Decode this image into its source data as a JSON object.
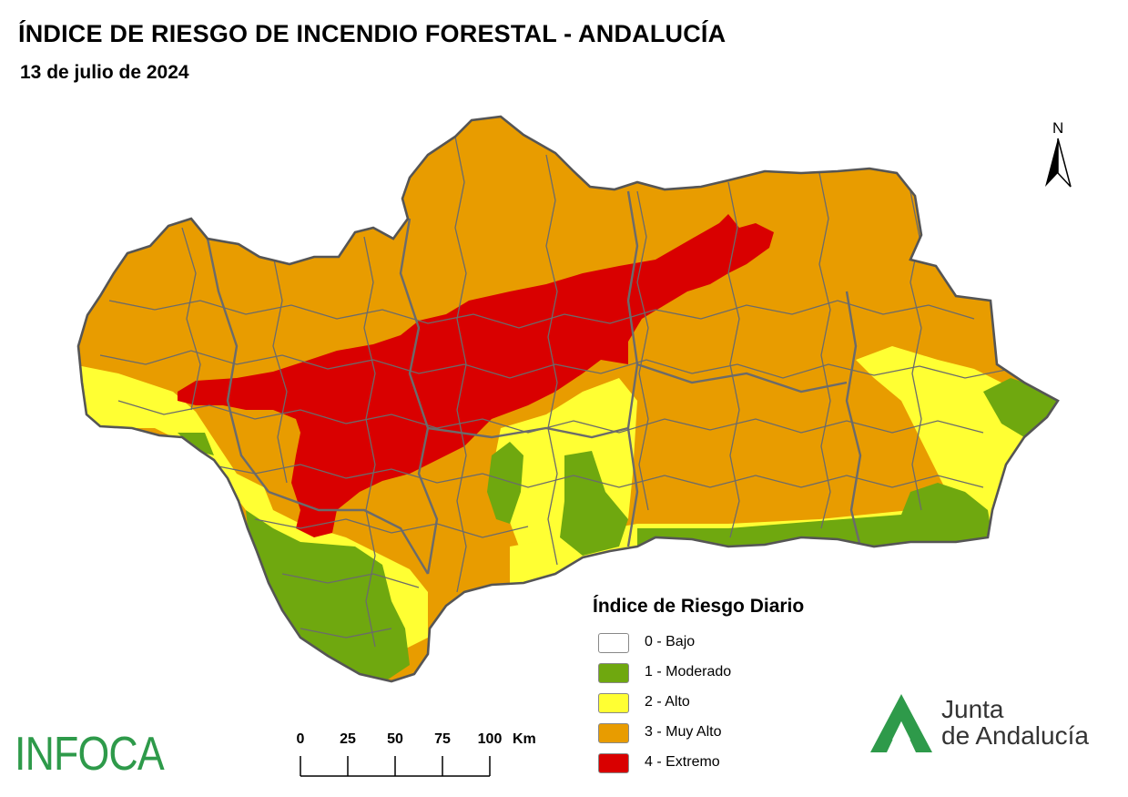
{
  "header": {
    "title": "ÍNDICE DE RIESGO DE INCENDIO FORESTAL - ANDALUCÍA",
    "date": "13 de julio de 2024"
  },
  "north_arrow": {
    "letter": "N"
  },
  "legend": {
    "title": "Índice de Riesgo Diario",
    "items": [
      {
        "label": "0 - Bajo",
        "color": "#ffffff"
      },
      {
        "label": "1 - Moderado",
        "color": "#6fa80f"
      },
      {
        "label": "2 - Alto",
        "color": "#ffff33"
      },
      {
        "label": "3 - Muy Alto",
        "color": "#e89c00"
      },
      {
        "label": "4 - Extremo",
        "color": "#d90000"
      }
    ]
  },
  "scale_bar": {
    "ticks": [
      "0",
      "25",
      "50",
      "75",
      "100"
    ],
    "unit": "Km"
  },
  "logos": {
    "infoca": "INFOCA",
    "junta_line1": "Junta",
    "junta_line2": "de Andalucía",
    "infoca_color": "#2e9a4a",
    "junta_color": "#2e9a4a"
  },
  "map_colors": {
    "border": "#6b6b6b"
  }
}
